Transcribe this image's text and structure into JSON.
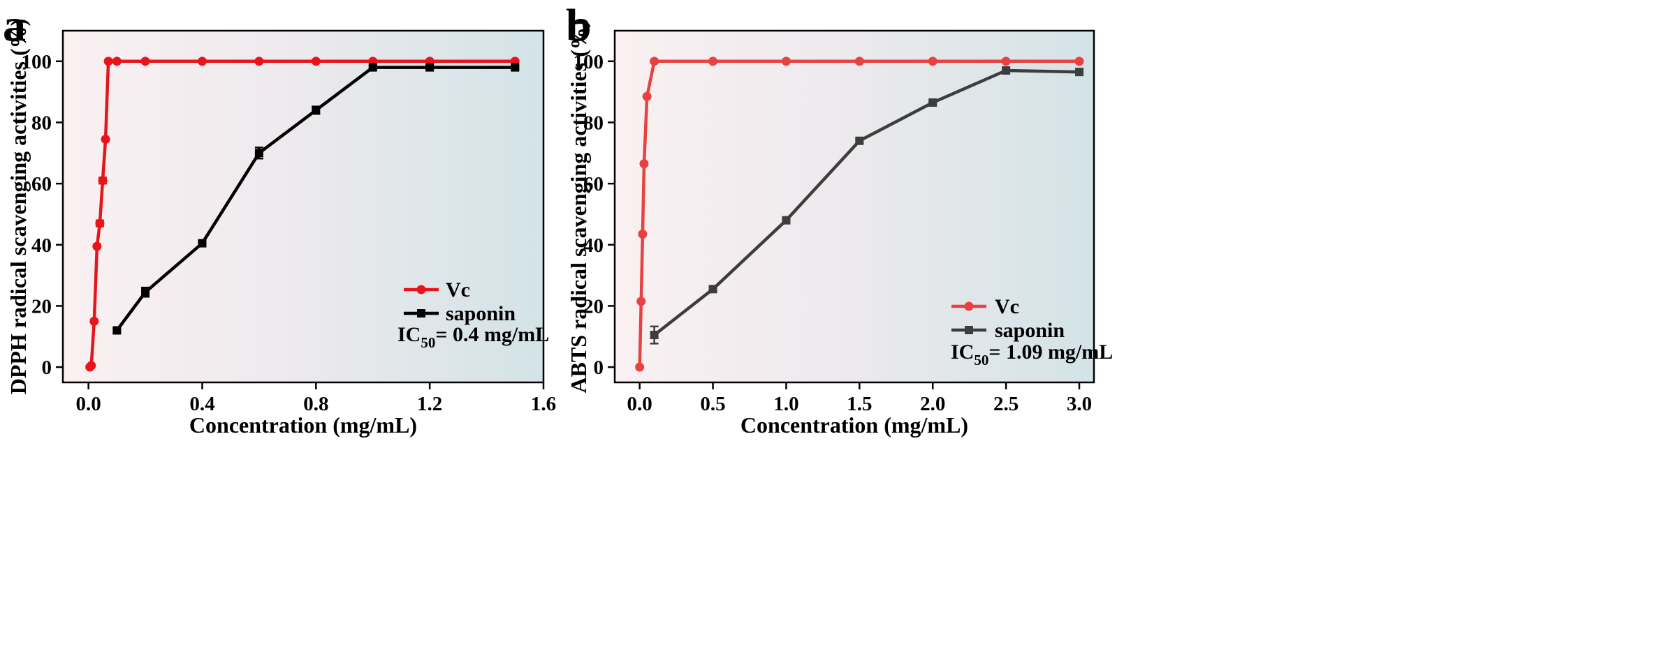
{
  "chart_data": [
    {
      "panel": "a",
      "type": "line",
      "xlabel": "Concentration (mg/mL)",
      "ylabel": "DPPH radical scavenging activities (%)",
      "xlim": [
        -0.09,
        1.6
      ],
      "ylim": [
        -5,
        110
      ],
      "xticks": [
        "0.0",
        "0.4",
        "0.8",
        "1.2",
        "1.6"
      ],
      "yticks": [
        "0",
        "20",
        "40",
        "60",
        "80",
        "100"
      ],
      "grid": false,
      "legend_position": "bottom-right",
      "annotation": {
        "prefix": "IC",
        "sub": "50",
        "suffix": "= 0.4 mg/mL"
      },
      "series": [
        {
          "name": "Vc",
          "color": "#e8141c",
          "marker": "circle",
          "x": [
            0.005,
            0.01,
            0.02,
            0.03,
            0.04,
            0.05,
            0.06,
            0.07,
            0.1,
            0.2,
            0.4,
            0.6,
            0.8,
            1.0,
            1.2,
            1.5
          ],
          "y": [
            0,
            0.5,
            15,
            39.5,
            47,
            61,
            74.5,
            100,
            100,
            100,
            100,
            100,
            100,
            100,
            100,
            100
          ],
          "err": [
            0,
            0,
            0,
            0,
            1,
            1,
            0,
            0,
            0,
            0,
            0,
            0,
            0,
            0,
            0,
            0
          ]
        },
        {
          "name": "saponin",
          "color": "#000000",
          "marker": "square",
          "x": [
            0.1,
            0.2,
            0.4,
            0.6,
            0.8,
            1.0,
            1.2,
            1.5
          ],
          "y": [
            12,
            24.5,
            40.5,
            70,
            84,
            98,
            98,
            98
          ],
          "err": [
            0.5,
            1.5,
            0.5,
            1.8,
            1.2,
            0.6,
            0.5,
            0.5
          ]
        }
      ]
    },
    {
      "panel": "b",
      "type": "line",
      "xlabel": "Concentration (mg/mL)",
      "ylabel": "ABTS radical scavenging activities (%)",
      "xlim": [
        -0.17,
        3.1
      ],
      "ylim": [
        -5,
        110
      ],
      "xticks": [
        "0.0",
        "0.5",
        "1.0",
        "1.5",
        "2.0",
        "2.5",
        "3.0"
      ],
      "yticks": [
        "0",
        "20",
        "40",
        "60",
        "80",
        "100"
      ],
      "grid": false,
      "legend_position": "bottom-right",
      "annotation": {
        "prefix": "IC",
        "sub": "50",
        "suffix": "= 1.09 mg/mL"
      },
      "series": [
        {
          "name": "Vc",
          "color": "#e8413f",
          "marker": "circle",
          "x": [
            0.0,
            0.01,
            0.02,
            0.03,
            0.05,
            0.1,
            0.5,
            1.0,
            1.5,
            2.0,
            2.5,
            3.0
          ],
          "y": [
            0,
            21.5,
            43.5,
            66.5,
            88.5,
            100,
            100,
            100,
            100,
            100,
            100,
            100
          ],
          "err": [
            0,
            0,
            0,
            0,
            0,
            0,
            0,
            0,
            0,
            0,
            0,
            0
          ]
        },
        {
          "name": "saponin",
          "color": "#3d3d3d",
          "marker": "square",
          "x": [
            0.1,
            0.5,
            1.0,
            1.5,
            2.0,
            2.5,
            3.0
          ],
          "y": [
            10.5,
            25.5,
            48,
            74,
            86.5,
            97,
            96.5
          ],
          "err": [
            2.8,
            0.6,
            0.6,
            0.6,
            0.5,
            0.6,
            0.5
          ]
        }
      ]
    }
  ]
}
